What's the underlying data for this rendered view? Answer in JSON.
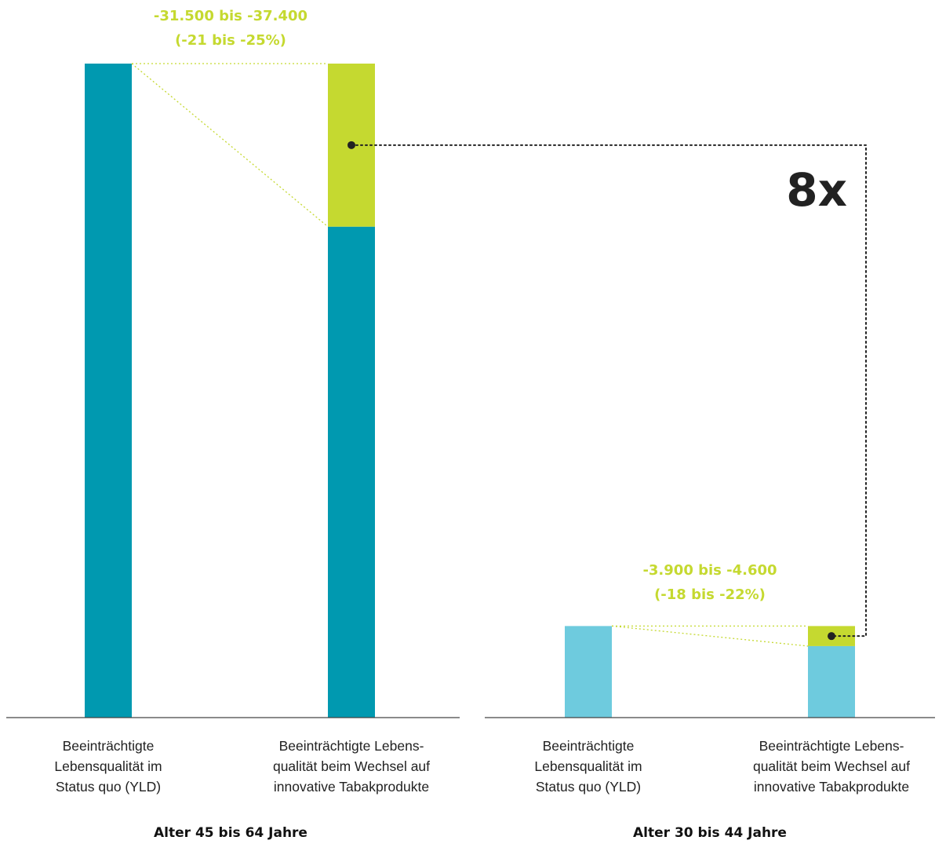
{
  "colors": {
    "teal": "#0099b0",
    "light_blue": "#6ecbde",
    "green": "#c5d930",
    "axis": "#444444",
    "text": "#222222"
  },
  "chart_data": {
    "type": "bar",
    "stacked": true,
    "factor_label": "8x",
    "groups": [
      {
        "name": "Alter 45 bis 64 Jahre",
        "bar_color": "#0099b0",
        "categories": [
          [
            "Beeinträchtigte",
            "Lebensqualität im",
            "Status quo (YLD)"
          ],
          [
            "Beeinträchtigte Lebens-",
            "qualität beim Wechsel auf",
            "innovative Tabakprodukte"
          ]
        ],
        "status_quo": 150000,
        "switch_remaining": 112600,
        "reduction": 37400,
        "reduction_label": [
          "-31.500 bis -37.400",
          "(-21 bis -25%)"
        ]
      },
      {
        "name": "Alter 30 bis 44 Jahre",
        "bar_color": "#6ecbde",
        "categories": [
          [
            "Beeinträchtigte",
            "Lebensqualität im",
            "Status quo (YLD)"
          ],
          [
            "Beeinträchtigte Lebens-",
            "qualität beim Wechsel auf",
            "innovative Tabakprodukte"
          ]
        ],
        "status_quo": 21000,
        "switch_remaining": 16400,
        "reduction": 4600,
        "reduction_label": [
          "-3.900 bis -4.600",
          "(-18 bis -22%)"
        ]
      }
    ],
    "ylim": [
      0,
      150000
    ],
    "grid": false
  }
}
